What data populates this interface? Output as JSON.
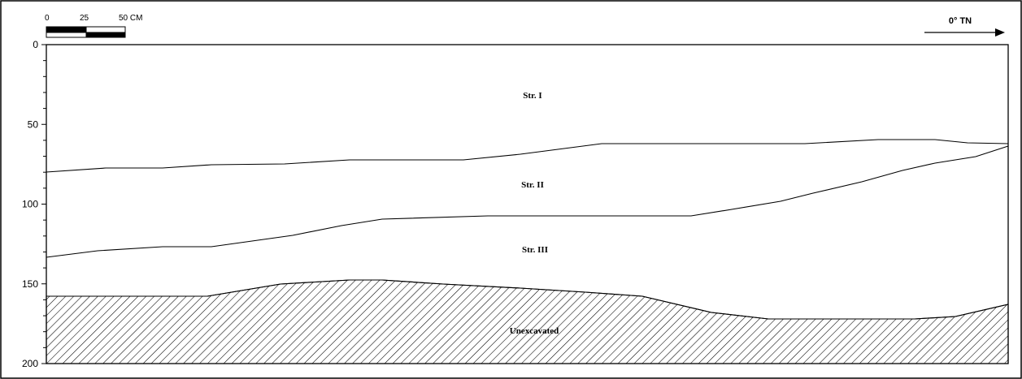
{
  "scale_bar": {
    "label_0": "0",
    "label_25": "25",
    "label_50": "50 CM"
  },
  "north_arrow": {
    "label": "0° TN"
  },
  "depth_axis": {
    "ticks": [
      {
        "value": 0,
        "label": "0"
      },
      {
        "value": 50,
        "label": "50"
      },
      {
        "value": 100,
        "label": "100"
      },
      {
        "value": 150,
        "label": "150"
      },
      {
        "value": 200,
        "label": "200"
      }
    ],
    "min": 0,
    "max": 200,
    "minor_step": 10
  },
  "strata": {
    "labels": [
      {
        "id": "str-i",
        "text": "Str. I"
      },
      {
        "id": "str-ii",
        "text": "Str. II"
      },
      {
        "id": "str-iii",
        "text": "Str. III"
      },
      {
        "id": "unexcavated",
        "text": "Unexcavated"
      }
    ]
  },
  "colors": {
    "line": "#000000",
    "background": "#ffffff"
  }
}
